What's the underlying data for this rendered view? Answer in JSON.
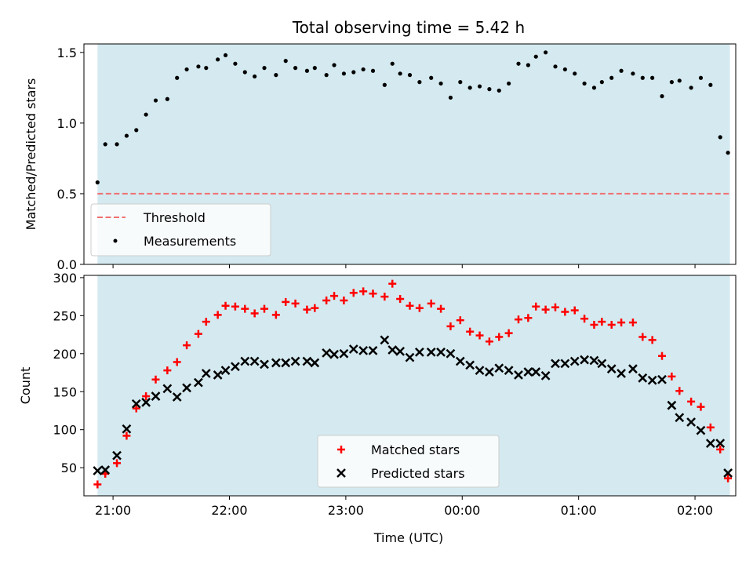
{
  "chart_data": {
    "title": "Total observing time = 5.42 h",
    "xlabel": "Time (UTC)",
    "x_tick_labels": [
      "21:00",
      "22:00",
      "23:00",
      "00:00",
      "01:00",
      "02:00"
    ],
    "observing_window": {
      "start": "20:52",
      "end": "02:18"
    },
    "shade_color": "#d4eaf0",
    "panels": [
      {
        "type": "scatter",
        "ylabel": "Matched/Predicted stars",
        "ylim": [
          0,
          1.56
        ],
        "y_ticks": [
          "0.0",
          "0.5",
          "1.0",
          "1.5"
        ],
        "y_tick_values": [
          0,
          0.5,
          1.0,
          1.5
        ],
        "legend_position": "lower-left",
        "threshold": {
          "name": "Threshold",
          "value": 0.5,
          "color": "#ef7070",
          "style": "dashed"
        },
        "series": [
          {
            "name": "Measurements",
            "marker": "dot",
            "color": "#000000",
            "x": [
              "20:52",
              "20:56",
              "21:02",
              "21:07",
              "21:12",
              "21:17",
              "21:22",
              "21:28",
              "21:33",
              "21:38",
              "21:44",
              "21:48",
              "21:54",
              "21:58",
              "22:03",
              "22:08",
              "22:13",
              "22:18",
              "22:24",
              "22:29",
              "22:34",
              "22:40",
              "22:44",
              "22:50",
              "22:54",
              "22:59",
              "23:04",
              "23:09",
              "23:14",
              "23:20",
              "23:24",
              "23:28",
              "23:33",
              "23:38",
              "23:44",
              "23:49",
              "23:54",
              "23:59",
              "00:04",
              "00:09",
              "00:14",
              "00:19",
              "00:24",
              "00:29",
              "00:34",
              "00:38",
              "00:43",
              "00:48",
              "00:53",
              "00:58",
              "01:03",
              "01:08",
              "01:12",
              "01:17",
              "01:22",
              "01:28",
              "01:33",
              "01:38",
              "01:43",
              "01:48",
              "01:52",
              "01:58",
              "02:03",
              "02:08",
              "02:13",
              "02:17"
            ],
            "y": [
              0.58,
              0.85,
              0.85,
              0.91,
              0.95,
              1.06,
              1.16,
              1.17,
              1.32,
              1.38,
              1.4,
              1.39,
              1.45,
              1.48,
              1.42,
              1.36,
              1.33,
              1.39,
              1.34,
              1.44,
              1.39,
              1.37,
              1.39,
              1.34,
              1.41,
              1.35,
              1.36,
              1.38,
              1.37,
              1.27,
              1.42,
              1.35,
              1.34,
              1.29,
              1.32,
              1.28,
              1.18,
              1.29,
              1.25,
              1.26,
              1.24,
              1.23,
              1.28,
              1.42,
              1.41,
              1.47,
              1.5,
              1.4,
              1.38,
              1.35,
              1.28,
              1.25,
              1.29,
              1.32,
              1.37,
              1.35,
              1.32,
              1.32,
              1.19,
              1.29,
              1.3,
              1.25,
              1.32,
              1.27,
              0.9,
              0.79
            ]
          }
        ]
      },
      {
        "type": "scatter",
        "ylabel": "Count",
        "ylim": [
          13,
          303
        ],
        "y_ticks": [
          "50",
          "100",
          "150",
          "200",
          "250",
          "300"
        ],
        "y_tick_values": [
          50,
          100,
          150,
          200,
          250,
          300
        ],
        "legend_position": "bottom-center",
        "series": [
          {
            "name": "Matched stars",
            "marker": "plus",
            "color": "#ff0000",
            "x": [
              "20:52",
              "20:56",
              "21:02",
              "21:07",
              "21:12",
              "21:17",
              "21:22",
              "21:28",
              "21:33",
              "21:38",
              "21:44",
              "21:48",
              "21:54",
              "21:58",
              "22:03",
              "22:08",
              "22:13",
              "22:18",
              "22:24",
              "22:29",
              "22:34",
              "22:40",
              "22:44",
              "22:50",
              "22:54",
              "22:59",
              "23:04",
              "23:09",
              "23:14",
              "23:20",
              "23:24",
              "23:28",
              "23:33",
              "23:38",
              "23:44",
              "23:49",
              "23:54",
              "23:59",
              "00:04",
              "00:09",
              "00:14",
              "00:19",
              "00:24",
              "00:29",
              "00:34",
              "00:38",
              "00:43",
              "00:48",
              "00:53",
              "00:58",
              "01:03",
              "01:08",
              "01:12",
              "01:17",
              "01:22",
              "01:28",
              "01:33",
              "01:38",
              "01:43",
              "01:48",
              "01:52",
              "01:58",
              "02:03",
              "02:08",
              "02:13",
              "02:17"
            ],
            "y": [
              28,
              42,
              56,
              92,
              128,
              144,
              166,
              178,
              189,
              211,
              226,
              242,
              251,
              263,
              262,
              259,
              253,
              259,
              251,
              268,
              266,
              258,
              260,
              270,
              276,
              270,
              280,
              282,
              279,
              275,
              292,
              272,
              263,
              260,
              266,
              259,
              236,
              244,
              229,
              224,
              216,
              222,
              227,
              245,
              247,
              262,
              258,
              261,
              255,
              257,
              246,
              238,
              242,
              238,
              241,
              241,
              222,
              218,
              197,
              170,
              151,
              137,
              130,
              103,
              74,
              36
            ]
          },
          {
            "name": "Predicted stars",
            "marker": "x",
            "color": "#000000",
            "x": [
              "20:52",
              "20:56",
              "21:02",
              "21:07",
              "21:12",
              "21:17",
              "21:22",
              "21:28",
              "21:33",
              "21:38",
              "21:44",
              "21:48",
              "21:54",
              "21:58",
              "22:03",
              "22:08",
              "22:13",
              "22:18",
              "22:24",
              "22:29",
              "22:34",
              "22:40",
              "22:44",
              "22:50",
              "22:54",
              "22:59",
              "23:04",
              "23:09",
              "23:14",
              "23:20",
              "23:24",
              "23:28",
              "23:33",
              "23:38",
              "23:44",
              "23:49",
              "23:54",
              "23:59",
              "00:04",
              "00:09",
              "00:14",
              "00:19",
              "00:24",
              "00:29",
              "00:34",
              "00:38",
              "00:43",
              "00:48",
              "00:53",
              "00:58",
              "01:03",
              "01:08",
              "01:12",
              "01:17",
              "01:22",
              "01:28",
              "01:33",
              "01:38",
              "01:43",
              "01:48",
              "01:52",
              "01:58",
              "02:03",
              "02:08",
              "02:13",
              "02:17"
            ],
            "y": [
              46,
              47,
              66,
              101,
              134,
              136,
              144,
              154,
              143,
              155,
              162,
              174,
              172,
              178,
              183,
              190,
              190,
              186,
              188,
              188,
              190,
              190,
              188,
              201,
              199,
              200,
              206,
              204,
              204,
              218,
              205,
              203,
              195,
              202,
              202,
              202,
              200,
              190,
              185,
              178,
              176,
              181,
              178,
              172,
              176,
              176,
              171,
              187,
              187,
              190,
              192,
              191,
              187,
              180,
              174,
              180,
              168,
              165,
              166,
              132,
              116,
              110,
              99,
              82,
              82,
              43
            ]
          }
        ]
      }
    ]
  }
}
